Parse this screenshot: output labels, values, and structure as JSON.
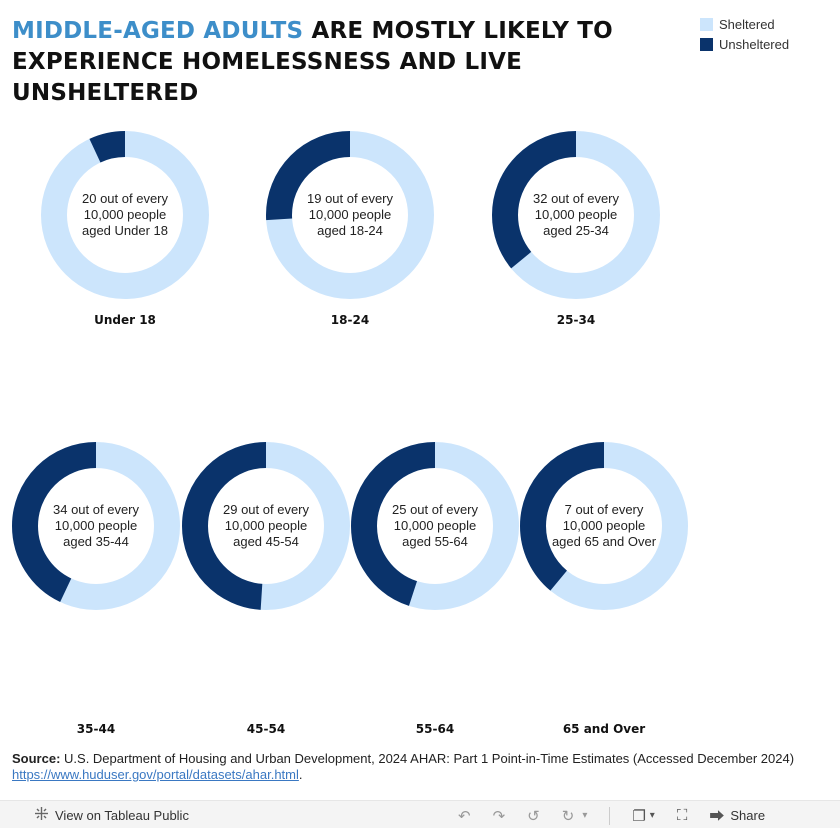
{
  "title": {
    "accent": "MIDDLE-AGED ADULTS",
    "rest": " ARE MOSTLY LIKELY TO EXPERIENCE HOMELESSNESS AND LIVE UNSHELTERED"
  },
  "colors": {
    "sheltered": "#cce5fc",
    "unsheltered": "#0a336b",
    "accent": "#3d8ec9"
  },
  "legend": [
    "Sheltered",
    "Unsheltered"
  ],
  "chart_data": {
    "type": "pie",
    "style": "donut",
    "series_names": [
      "Sheltered",
      "Unsheltered"
    ],
    "categories": [
      "Under 18",
      "18-24",
      "25-34",
      "35-44",
      "45-54",
      "55-64",
      "65 and Over"
    ],
    "unsheltered_share": [
      0.07,
      0.26,
      0.36,
      0.43,
      0.49,
      0.45,
      0.39
    ],
    "center_labels": [
      [
        "20 out of every",
        "10,000 people",
        "aged Under 18"
      ],
      [
        "19 out of every",
        "10,000 people",
        "aged 18-24"
      ],
      [
        "32 out of every",
        "10,000 people",
        "aged 25-34"
      ],
      [
        "34 out of every",
        "10,000 people",
        "aged 35-44"
      ],
      [
        "29 out of every",
        "10,000 people",
        "aged 45-54"
      ],
      [
        "25 out of every",
        "10,000 people",
        "aged 55-64"
      ],
      [
        "7 out of every",
        "10,000 people",
        "aged 65 and Over"
      ]
    ]
  },
  "source": {
    "label": "Source:",
    "text": " U.S. Department of Housing and Urban Development, 2024 AHAR: Part 1 Point-in-Time Estimates (Accessed December 2024)",
    "link": "https://www.huduser.gov/portal/datasets/ahar.html",
    "after": "."
  },
  "toolbar": {
    "view_label": "View on Tableau Public",
    "share_label": "Share"
  }
}
